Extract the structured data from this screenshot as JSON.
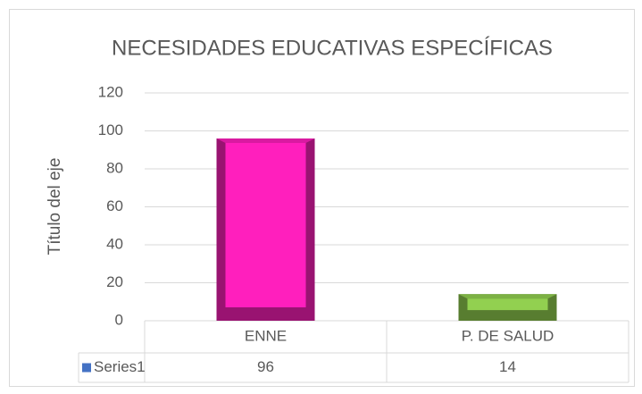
{
  "chart_data": {
    "type": "bar",
    "title": "NECESIDADES EDUCATIVAS ESPECÍFICAS",
    "y_label": "Título del eje",
    "categories": [
      "ENNE",
      "P. DE SALUD"
    ],
    "series": [
      {
        "name": "Series1",
        "color": "#4472c4",
        "point_colors": [
          "#ff1fbd",
          "#92d050"
        ],
        "values": [
          96,
          14
        ]
      }
    ],
    "ylim": [
      0,
      120
    ],
    "yticks": [
      0,
      20,
      40,
      60,
      80,
      100,
      120
    ],
    "grid": true,
    "data_table": true
  }
}
